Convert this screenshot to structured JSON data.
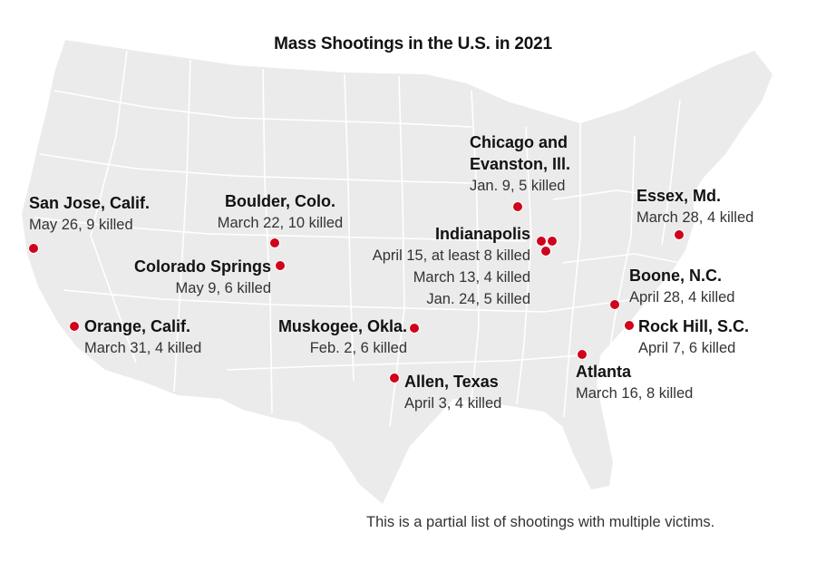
{
  "title": "Mass Shootings in the U.S. in 2021",
  "note": "This is a partial list of shootings with multiple victims.",
  "colors": {
    "marker": "#d0021b",
    "land": "#ebebeb",
    "borders": "#ffffff"
  },
  "shootings": [
    {
      "place": "San Jose, Calif.",
      "detail": "May 26, 9 killed"
    },
    {
      "place": "Boulder, Colo.",
      "detail": "March 22, 10 killed"
    },
    {
      "place": "Colorado Springs",
      "detail": "May 9, 6 killed"
    },
    {
      "place": "Orange, Calif.",
      "detail": "March 31, 4 killed"
    },
    {
      "place": "Muskogee, Okla.",
      "detail": "Feb. 2, 6 killed"
    },
    {
      "place": "Allen, Texas",
      "detail": "April 3, 4 killed"
    },
    {
      "place": "Chicago and",
      "place2": "Evanston, Ill.",
      "detail": "Jan. 9, 5 killed"
    },
    {
      "place": "Indianapolis",
      "details": [
        "April 15, at least 8 killed",
        "March 13, 4 killed",
        "Jan. 24, 5 killed"
      ]
    },
    {
      "place": "Essex, Md.",
      "detail": "March 28, 4 killed"
    },
    {
      "place": "Boone, N.C.",
      "detail": "April 28, 4 killed"
    },
    {
      "place": "Rock Hill, S.C.",
      "detail": "April 7, 6 killed"
    },
    {
      "place": "Atlanta",
      "detail": "March 16, 8 killed"
    }
  ]
}
